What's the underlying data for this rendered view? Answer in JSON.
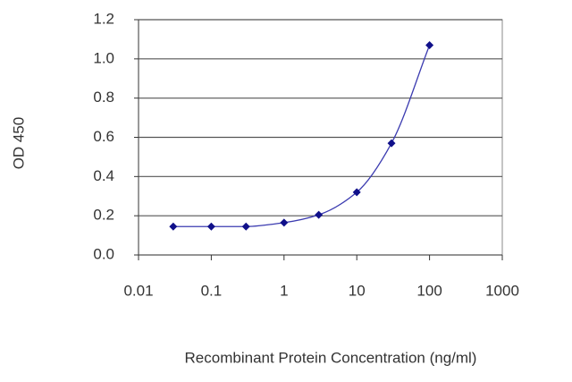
{
  "chart_data": {
    "type": "scatter",
    "x_label": "Recombinant Protein Concentration (ng/ml)",
    "y_label": "OD 450",
    "x": [
      0.03,
      0.1,
      0.3,
      1,
      3,
      10,
      30,
      100
    ],
    "values": [
      0.145,
      0.145,
      0.145,
      0.165,
      0.205,
      0.32,
      0.57,
      1.07
    ],
    "color": "#10108a",
    "fit_color": "#3b3bb0",
    "xscale": "log",
    "xlim": [
      0.01,
      1000
    ],
    "xticks": [
      0.01,
      0.1,
      1,
      10,
      100,
      1000
    ],
    "ylim": [
      0,
      1.2
    ],
    "yticks": [
      {
        "value": 0,
        "label": "0.0"
      },
      0.2,
      0.4,
      0.6,
      0.8,
      {
        "value": 1,
        "label": "1.0"
      },
      1.2
    ],
    "grid": true
  }
}
